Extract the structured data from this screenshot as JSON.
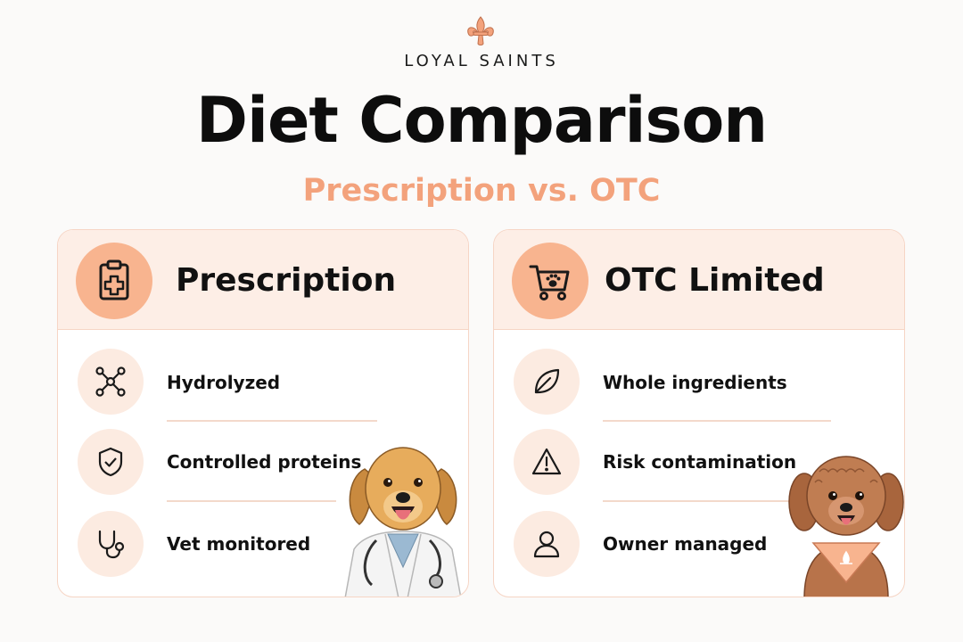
{
  "brand": {
    "name": "LOYAL SAINTS",
    "logo_icon": "fleur-de-lis-icon"
  },
  "title": "Diet Comparison",
  "subtitle": "Prescription vs. OTC",
  "colors": {
    "accent": "#f3a27c",
    "header_bg": "#fdeee6",
    "icon_circle": "#f8b48f",
    "row_icon_bg": "#fcebe1"
  },
  "cards": [
    {
      "title": "Prescription",
      "header_icon": "clipboard-medical-icon",
      "items": [
        {
          "label": "Hydrolyzed",
          "icon": "molecule-icon"
        },
        {
          "label": "Controlled proteins",
          "icon": "shield-check-icon"
        },
        {
          "label": "Vet monitored",
          "icon": "stethoscope-icon"
        }
      ],
      "illustration": "golden-retriever-vet-illustration"
    },
    {
      "title": "OTC Limited",
      "header_icon": "shopping-cart-paw-icon",
      "items": [
        {
          "label": "Whole ingredients",
          "icon": "leaf-icon"
        },
        {
          "label": "Risk contamination",
          "icon": "warning-icon"
        },
        {
          "label": "Owner managed",
          "icon": "user-icon"
        }
      ],
      "illustration": "doodle-dog-bandana-illustration"
    }
  ]
}
